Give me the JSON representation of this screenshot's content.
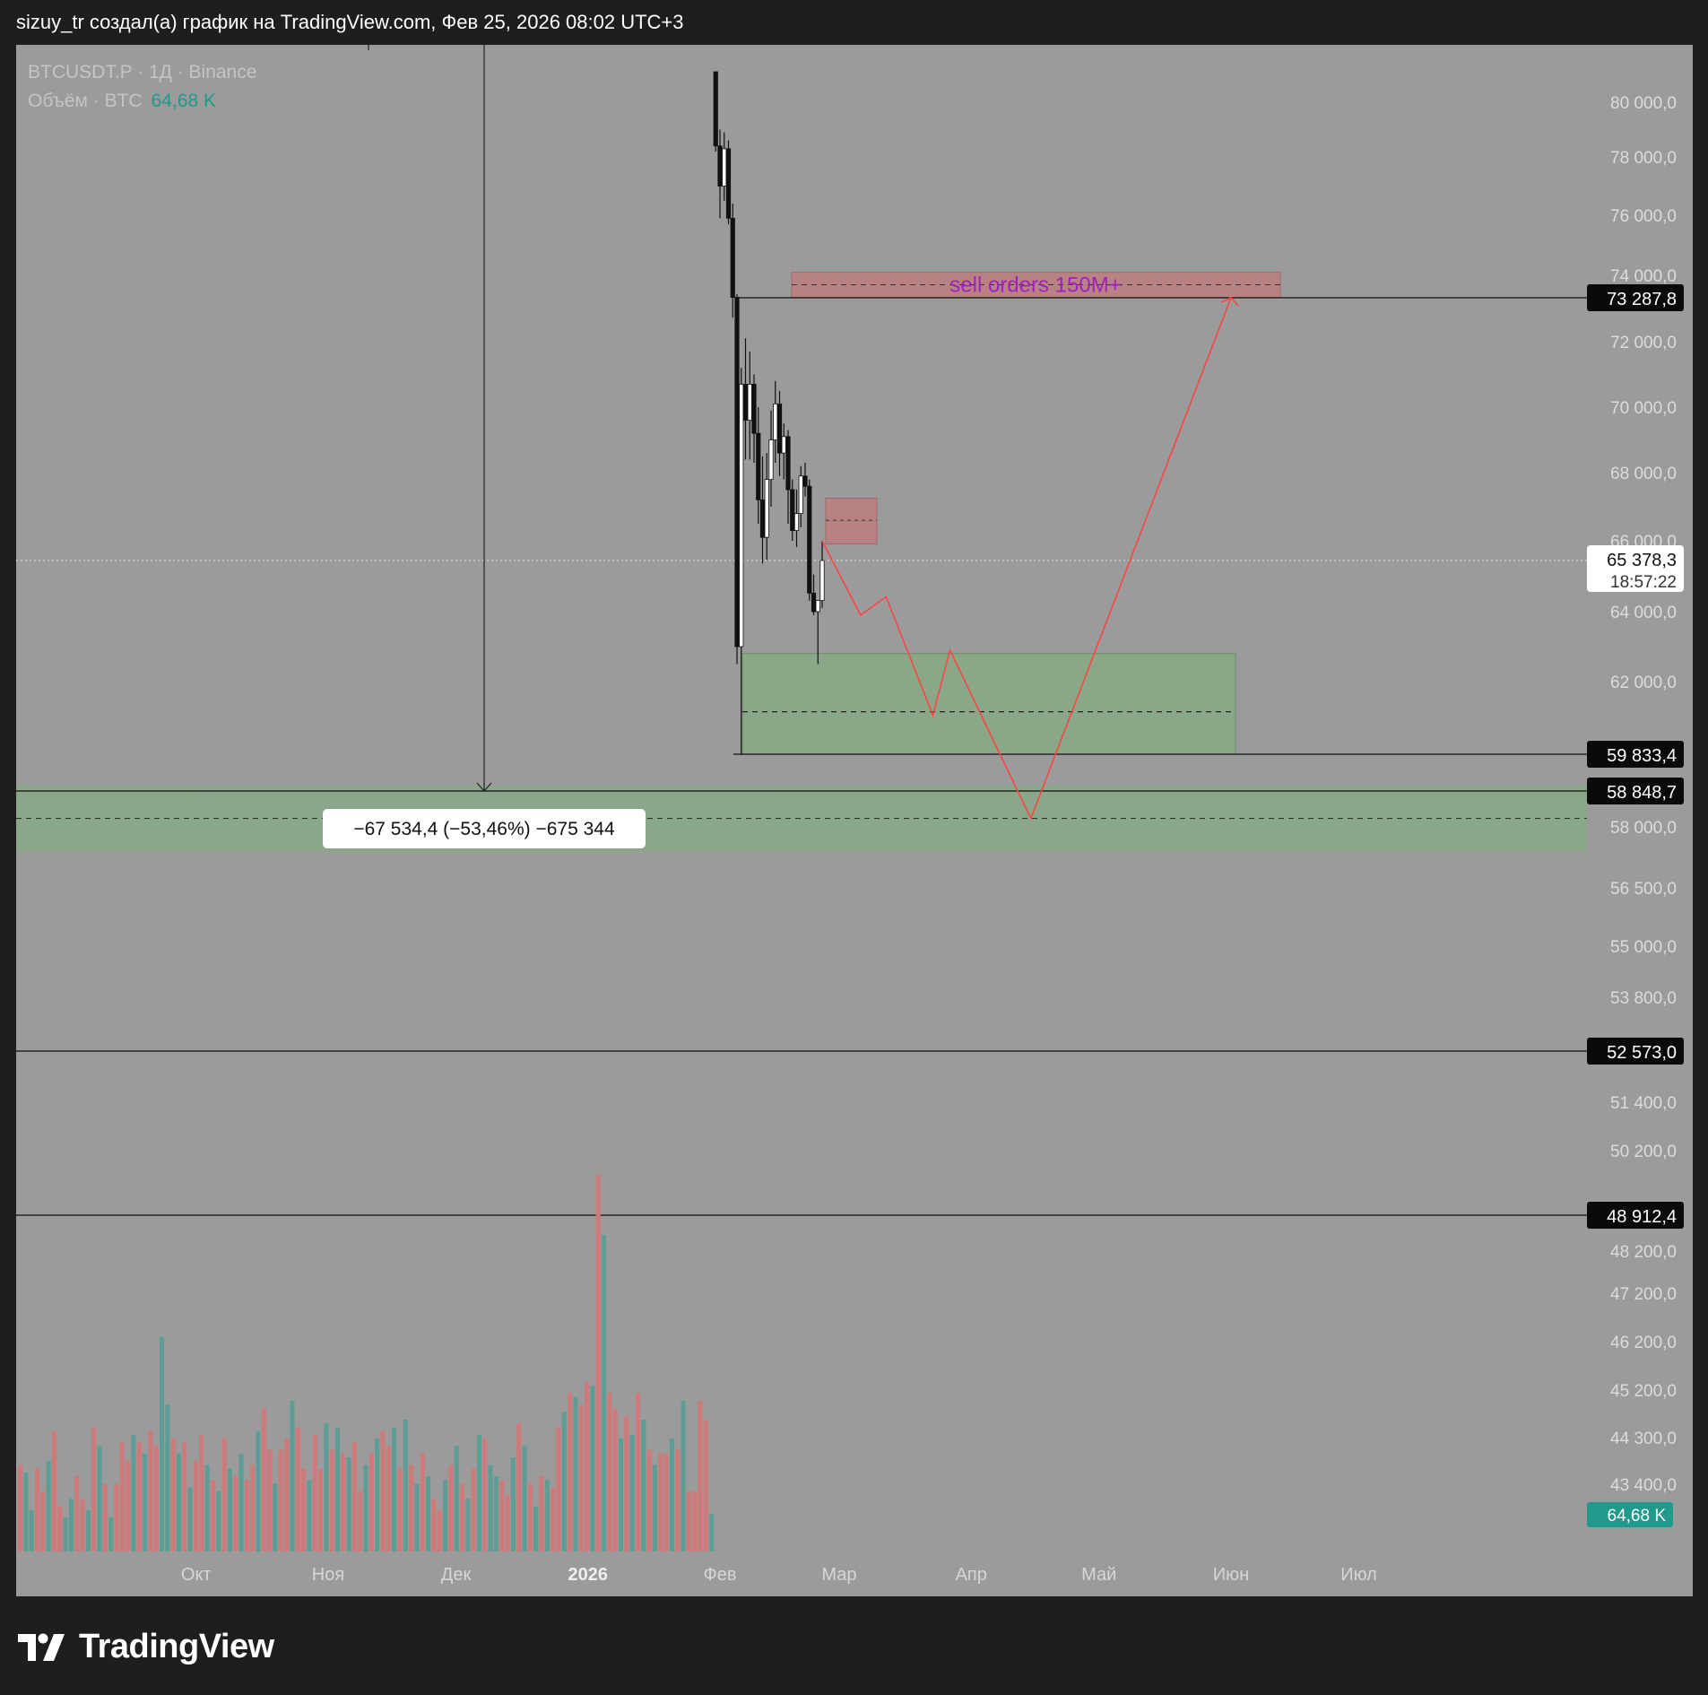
{
  "header": {
    "caption": "sizuy_tr создал(а) график на TradingView.com, Фев 25, 2026 08:02 UTC+3"
  },
  "legend": {
    "symbol_line": "BTCUSDT.P · 1Д · Binance",
    "volume_label": "Объём · BTC",
    "volume_value": "64,68 K"
  },
  "footer": {
    "brand": "TradingView",
    "logo_icon": "tradingview-logo-icon"
  },
  "colors": {
    "background": "#9b9b9b",
    "frame": "#1e1e1e",
    "bull_candle": "#ffffff",
    "bear_candle": "#111111",
    "volume_up": "#5e9d95",
    "volume_down": "#cf7a7a",
    "projection_line": "#ff4444",
    "demand_zone": "#8aa887",
    "supply_zone": "#b88282",
    "sell_orders_text": "#a020c0",
    "volume_badge": "#1f9a8c"
  },
  "chart_data": {
    "type": "candlestick",
    "symbol": "BTCUSDT.P",
    "timeframe": "1Д",
    "exchange": "Binance",
    "y_axis": {
      "labels": [
        "80 000,0",
        "78 000,0",
        "76 000,0",
        "74 000,0",
        "72 000,0",
        "70 000,0",
        "68 000,0",
        "66 000,0",
        "64 000,0",
        "62 000,0",
        "58 000,0",
        "56 500,0",
        "55 000,0",
        "53 800,0",
        "51 400,0",
        "50 200,0",
        "48 200,0",
        "47 200,0",
        "46 200,0",
        "45 200,0",
        "44 300,0",
        "43 400,0"
      ],
      "values": [
        80000,
        78000,
        76000,
        74000,
        72000,
        70000,
        68000,
        66000,
        64000,
        62000,
        58000,
        56500,
        55000,
        53800,
        51400,
        50200,
        48200,
        47200,
        46200,
        45200,
        44300,
        43400
      ]
    },
    "x_axis": {
      "labels": [
        "Окт",
        "Ноя",
        "Дек",
        "2026",
        "Фев",
        "Мар",
        "Апр",
        "Май",
        "Июн",
        "Июл"
      ],
      "bold": [
        "2026"
      ]
    },
    "price_lines": [
      {
        "value": 73287.8,
        "label": "73 287,8"
      },
      {
        "value": 59833.4,
        "label": "59 833,4"
      },
      {
        "value": 58848.7,
        "label": "58 848,7"
      },
      {
        "value": 52573.0,
        "label": "52 573,0"
      },
      {
        "value": 48912.4,
        "label": "48 912,4"
      }
    ],
    "last_price": {
      "value": 65378.3,
      "label": "65 378,3",
      "countdown": "18:57:22"
    },
    "measure_label": "−67 534,4 (−53,46%) −675 344",
    "annotations": [
      {
        "type": "supply_zone",
        "text": "sell orders 150M+",
        "from": 73300,
        "to": 74100
      },
      {
        "type": "supply_zone",
        "text": "",
        "from": 65900,
        "to": 67250
      },
      {
        "type": "demand_zone",
        "text": "",
        "from": 59833.4,
        "to": 62800,
        "mid": 61100
      },
      {
        "type": "demand_zone",
        "text": "",
        "from": 57400,
        "to": 59000,
        "mid": 58200
      }
    ],
    "projection_path": [
      {
        "date": "2026-02-25",
        "price": 66000
      },
      {
        "date": "2026-03-06",
        "price": 63900
      },
      {
        "date": "2026-03-12",
        "price": 64400
      },
      {
        "date": "2026-03-23",
        "price": 61000
      },
      {
        "date": "2026-03-27",
        "price": 62900
      },
      {
        "date": "2026-04-15",
        "price": 58200
      },
      {
        "date": "2026-06-01",
        "price": 73287.8
      }
    ],
    "candles": [
      {
        "date": "2026-01-31",
        "o": 81000,
        "h": 81000,
        "l": 78200,
        "c": 78400
      },
      {
        "date": "2026-02-01",
        "o": 78400,
        "h": 79000,
        "l": 75900,
        "c": 77000
      },
      {
        "date": "2026-02-02",
        "o": 77000,
        "h": 78900,
        "l": 76500,
        "c": 78300
      },
      {
        "date": "2026-02-03",
        "o": 78300,
        "h": 78600,
        "l": 75700,
        "c": 75900
      },
      {
        "date": "2026-02-04",
        "o": 75900,
        "h": 76400,
        "l": 72700,
        "c": 73300
      },
      {
        "date": "2026-02-05",
        "o": 73300,
        "h": 73400,
        "l": 62500,
        "c": 63000
      },
      {
        "date": "2026-02-06",
        "o": 63000,
        "h": 71200,
        "l": 59833.4,
        "c": 70700
      },
      {
        "date": "2026-02-07",
        "o": 70700,
        "h": 72100,
        "l": 68400,
        "c": 69600
      },
      {
        "date": "2026-02-08",
        "o": 69600,
        "h": 71700,
        "l": 68400,
        "c": 70700
      },
      {
        "date": "2026-02-09",
        "o": 70700,
        "h": 71000,
        "l": 68300,
        "c": 69200
      },
      {
        "date": "2026-02-10",
        "o": 69200,
        "h": 70000,
        "l": 66500,
        "c": 67200
      },
      {
        "date": "2026-02-11",
        "o": 67200,
        "h": 68500,
        "l": 65300,
        "c": 66100
      },
      {
        "date": "2026-02-12",
        "o": 66100,
        "h": 68600,
        "l": 65400,
        "c": 67800
      },
      {
        "date": "2026-02-13",
        "o": 67800,
        "h": 69900,
        "l": 67000,
        "c": 69000
      },
      {
        "date": "2026-02-14",
        "o": 69000,
        "h": 70800,
        "l": 68300,
        "c": 70100
      },
      {
        "date": "2026-02-15",
        "o": 70100,
        "h": 70500,
        "l": 67900,
        "c": 68600
      },
      {
        "date": "2026-02-16",
        "o": 68600,
        "h": 69500,
        "l": 67800,
        "c": 69100
      },
      {
        "date": "2026-02-17",
        "o": 69100,
        "h": 69300,
        "l": 66500,
        "c": 67500
      },
      {
        "date": "2026-02-18",
        "o": 67500,
        "h": 67800,
        "l": 66000,
        "c": 66300
      },
      {
        "date": "2026-02-19",
        "o": 66300,
        "h": 67500,
        "l": 65800,
        "c": 66800
      },
      {
        "date": "2026-02-20",
        "o": 66800,
        "h": 68200,
        "l": 66400,
        "c": 67900
      },
      {
        "date": "2026-02-21",
        "o": 67900,
        "h": 68300,
        "l": 67300,
        "c": 67600
      },
      {
        "date": "2026-02-22",
        "o": 67600,
        "h": 67800,
        "l": 64300,
        "c": 64500
      },
      {
        "date": "2026-02-23",
        "o": 64500,
        "h": 65000,
        "l": 63900,
        "c": 64000
      },
      {
        "date": "2026-02-24",
        "o": 64000,
        "h": 64200,
        "l": 62500,
        "c": 64300
      },
      {
        "date": "2026-02-25",
        "o": 64300,
        "h": 66000,
        "l": 64100,
        "c": 65378.3
      }
    ],
    "volume": {
      "unit": "BTC",
      "last": "64,68 K",
      "note": "relative daily volume, max = 1.0",
      "bars": [
        {
          "v": 0.23,
          "d": 0
        },
        {
          "v": 0.21,
          "d": 1
        },
        {
          "v": 0.11,
          "d": 1
        },
        {
          "v": 0.22,
          "d": 0
        },
        {
          "v": 0.16,
          "d": 0
        },
        {
          "v": 0.24,
          "d": 1
        },
        {
          "v": 0.32,
          "d": 0
        },
        {
          "v": 0.12,
          "d": 0
        },
        {
          "v": 0.09,
          "d": 1
        },
        {
          "v": 0.14,
          "d": 1
        },
        {
          "v": 0.2,
          "d": 0
        },
        {
          "v": 0.14,
          "d": 0
        },
        {
          "v": 0.11,
          "d": 1
        },
        {
          "v": 0.33,
          "d": 0
        },
        {
          "v": 0.28,
          "d": 1
        },
        {
          "v": 0.18,
          "d": 0
        },
        {
          "v": 0.09,
          "d": 1
        },
        {
          "v": 0.18,
          "d": 0
        },
        {
          "v": 0.29,
          "d": 0
        },
        {
          "v": 0.24,
          "d": 0
        },
        {
          "v": 0.31,
          "d": 1
        },
        {
          "v": 0.29,
          "d": 0
        },
        {
          "v": 0.26,
          "d": 1
        },
        {
          "v": 0.32,
          "d": 0
        },
        {
          "v": 0.28,
          "d": 0
        },
        {
          "v": 0.57,
          "d": 1
        },
        {
          "v": 0.39,
          "d": 1
        },
        {
          "v": 0.3,
          "d": 0
        },
        {
          "v": 0.26,
          "d": 1
        },
        {
          "v": 0.29,
          "d": 0
        },
        {
          "v": 0.17,
          "d": 1
        },
        {
          "v": 0.24,
          "d": 0
        },
        {
          "v": 0.31,
          "d": 0
        },
        {
          "v": 0.23,
          "d": 1
        },
        {
          "v": 0.19,
          "d": 0
        },
        {
          "v": 0.16,
          "d": 1
        },
        {
          "v": 0.3,
          "d": 0
        },
        {
          "v": 0.22,
          "d": 1
        },
        {
          "v": 0.2,
          "d": 0
        },
        {
          "v": 0.26,
          "d": 1
        },
        {
          "v": 0.19,
          "d": 0
        },
        {
          "v": 0.23,
          "d": 0
        },
        {
          "v": 0.32,
          "d": 1
        },
        {
          "v": 0.38,
          "d": 0
        },
        {
          "v": 0.27,
          "d": 0
        },
        {
          "v": 0.18,
          "d": 1
        },
        {
          "v": 0.27,
          "d": 0
        },
        {
          "v": 0.3,
          "d": 0
        },
        {
          "v": 0.4,
          "d": 1
        },
        {
          "v": 0.33,
          "d": 0
        },
        {
          "v": 0.22,
          "d": 0
        },
        {
          "v": 0.19,
          "d": 1
        },
        {
          "v": 0.31,
          "d": 0
        },
        {
          "v": 0.22,
          "d": 0
        },
        {
          "v": 0.34,
          "d": 1
        },
        {
          "v": 0.27,
          "d": 0
        },
        {
          "v": 0.33,
          "d": 1
        },
        {
          "v": 0.26,
          "d": 0
        },
        {
          "v": 0.25,
          "d": 1
        },
        {
          "v": 0.29,
          "d": 0
        },
        {
          "v": 0.16,
          "d": 0
        },
        {
          "v": 0.23,
          "d": 1
        },
        {
          "v": 0.26,
          "d": 0
        },
        {
          "v": 0.3,
          "d": 1
        },
        {
          "v": 0.32,
          "d": 0
        },
        {
          "v": 0.28,
          "d": 0
        },
        {
          "v": 0.33,
          "d": 1
        },
        {
          "v": 0.22,
          "d": 0
        },
        {
          "v": 0.35,
          "d": 1
        },
        {
          "v": 0.23,
          "d": 0
        },
        {
          "v": 0.18,
          "d": 1
        },
        {
          "v": 0.26,
          "d": 0
        },
        {
          "v": 0.2,
          "d": 1
        },
        {
          "v": 0.14,
          "d": 0
        },
        {
          "v": 0.11,
          "d": 0
        },
        {
          "v": 0.19,
          "d": 1
        },
        {
          "v": 0.23,
          "d": 0
        },
        {
          "v": 0.28,
          "d": 1
        },
        {
          "v": 0.18,
          "d": 0
        },
        {
          "v": 0.14,
          "d": 1
        },
        {
          "v": 0.22,
          "d": 0
        },
        {
          "v": 0.31,
          "d": 1
        },
        {
          "v": 0.3,
          "d": 0
        },
        {
          "v": 0.23,
          "d": 1
        },
        {
          "v": 0.2,
          "d": 1
        },
        {
          "v": 0.19,
          "d": 0
        },
        {
          "v": 0.15,
          "d": 0
        },
        {
          "v": 0.25,
          "d": 1
        },
        {
          "v": 0.34,
          "d": 0
        },
        {
          "v": 0.28,
          "d": 1
        },
        {
          "v": 0.18,
          "d": 0
        },
        {
          "v": 0.12,
          "d": 1
        },
        {
          "v": 0.2,
          "d": 0
        },
        {
          "v": 0.19,
          "d": 1
        },
        {
          "v": 0.17,
          "d": 0
        },
        {
          "v": 0.33,
          "d": 0
        },
        {
          "v": 0.37,
          "d": 1
        },
        {
          "v": 0.42,
          "d": 0
        },
        {
          "v": 0.41,
          "d": 1
        },
        {
          "v": 0.39,
          "d": 0
        },
        {
          "v": 0.45,
          "d": 0
        },
        {
          "v": 0.44,
          "d": 1
        },
        {
          "v": 1.0,
          "d": 0
        },
        {
          "v": 0.84,
          "d": 1
        },
        {
          "v": 0.42,
          "d": 0
        },
        {
          "v": 0.38,
          "d": 0
        },
        {
          "v": 0.3,
          "d": 1
        },
        {
          "v": 0.36,
          "d": 0
        },
        {
          "v": 0.31,
          "d": 1
        },
        {
          "v": 0.42,
          "d": 0
        },
        {
          "v": 0.35,
          "d": 1
        },
        {
          "v": 0.27,
          "d": 0
        },
        {
          "v": 0.23,
          "d": 1
        },
        {
          "v": 0.26,
          "d": 0
        },
        {
          "v": 0.26,
          "d": 0
        },
        {
          "v": 0.3,
          "d": 1
        },
        {
          "v": 0.27,
          "d": 0
        },
        {
          "v": 0.4,
          "d": 1
        },
        {
          "v": 0.16,
          "d": 0
        },
        {
          "v": 0.16,
          "d": 0
        },
        {
          "v": 0.4,
          "d": 0
        },
        {
          "v": 0.35,
          "d": 0
        },
        {
          "v": 0.1,
          "d": 1
        }
      ]
    }
  }
}
